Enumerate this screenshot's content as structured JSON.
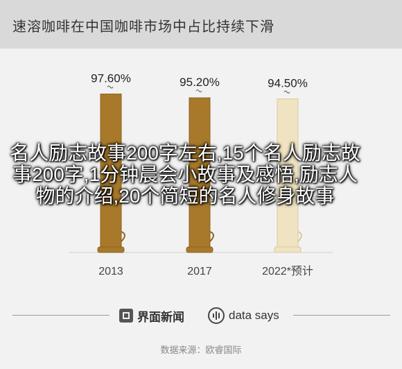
{
  "header": {
    "title": "速溶咖啡在中国咖啡市场中占比持续下滑"
  },
  "overlay": {
    "text": "名人励志故事200字左右,15个名人励志故事200字,1分钟晨会小故事及感悟,励志人物的介绍,20个简短的名人修身故事"
  },
  "footer": {
    "brand_left": "界面新闻",
    "brand_right": "data says",
    "source": "数据来源：欧睿国际"
  },
  "chart_data": {
    "type": "bar",
    "categories": [
      "2013",
      "2017",
      "2022*预计"
    ],
    "values": [
      97.6,
      95.2,
      94.5
    ],
    "value_labels": [
      "97.60%",
      "95.20%",
      "94.50%"
    ],
    "ylim": [
      0,
      100
    ],
    "colors": {
      "bar": "#a8792a",
      "bar_light": "#efe3c2",
      "background": "#f2f2f2",
      "header": "#d9d9d9"
    },
    "grid": false,
    "legend": "none"
  }
}
